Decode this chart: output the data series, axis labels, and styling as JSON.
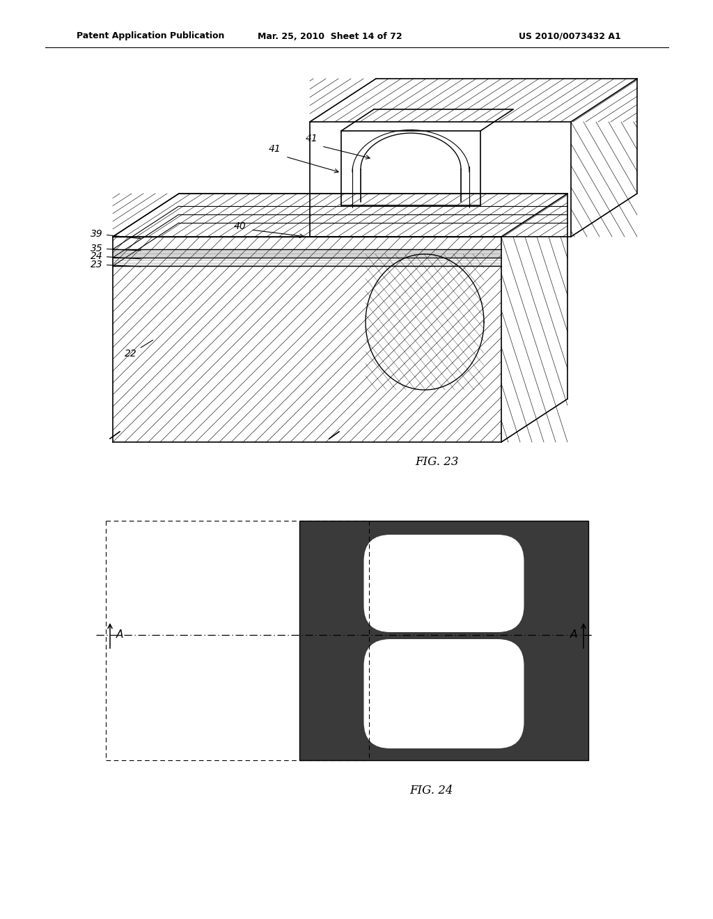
{
  "bg_color": "#ffffff",
  "header_left": "Patent Application Publication",
  "header_mid": "Mar. 25, 2010  Sheet 14 of 72",
  "header_right": "US 2010/0073432 A1",
  "fig23_label": "FIG. 23",
  "fig24_label": "FIG. 24",
  "line_color": "#000000",
  "dark_fill": "#3c3c3c",
  "hatch_lw": 0.5,
  "main_lw": 1.2,
  "label_fs": 10,
  "header_fs": 9
}
